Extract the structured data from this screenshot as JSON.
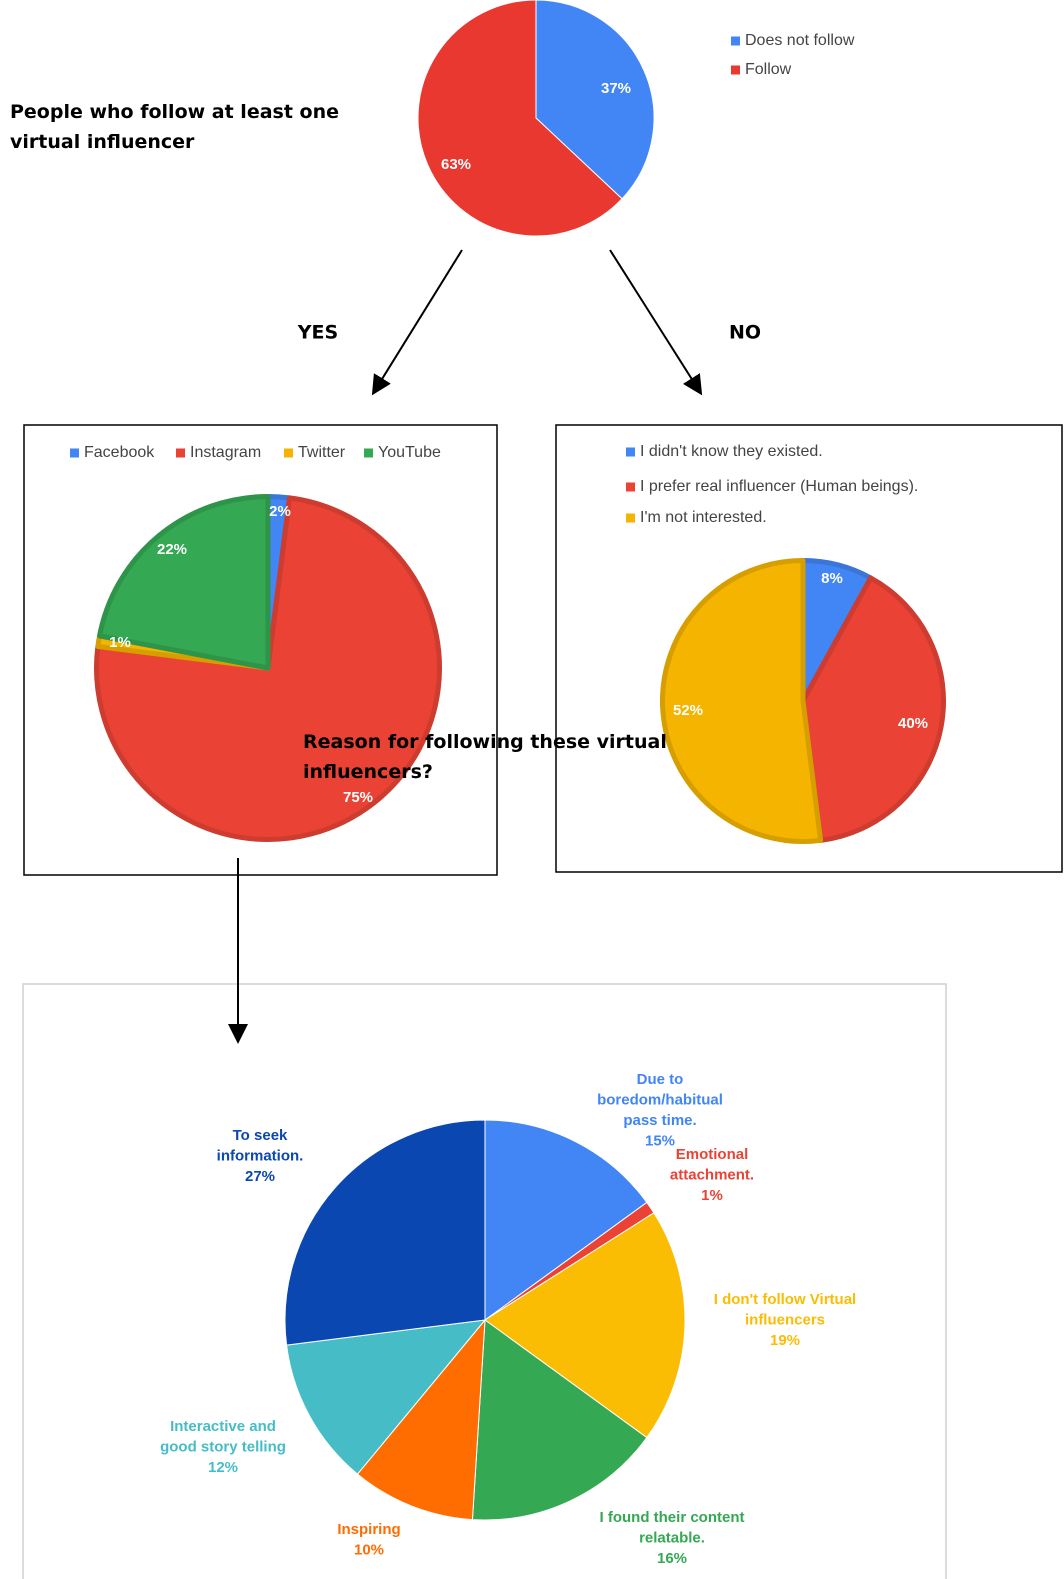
{
  "chart_data": [
    {
      "type": "pie",
      "title": "People who follow at least one virtual influencer",
      "categories": [
        "Does not follow",
        "Follow"
      ],
      "values": [
        37,
        63
      ],
      "value_labels": [
        "37%",
        "63%"
      ],
      "colors": [
        "#4285f4",
        "#e8382f"
      ],
      "legend": "right"
    },
    {
      "type": "pie",
      "annotation": "YES",
      "categories": [
        "Facebook",
        "Instagram",
        "Twitter",
        "YouTube"
      ],
      "values": [
        2,
        75,
        1,
        22
      ],
      "value_labels": [
        "2%",
        "75%",
        "1%",
        "22%"
      ],
      "colors": [
        "#4285f4",
        "#ea4335",
        "#f4b400",
        "#34a853"
      ],
      "legend": "top"
    },
    {
      "type": "pie",
      "annotation": "NO",
      "categories": [
        "I didn't know they existed.",
        "I prefer real influencer (Human beings).",
        "I'm not interested."
      ],
      "values": [
        8,
        40,
        52
      ],
      "value_labels": [
        "8%",
        "40%",
        "52%"
      ],
      "colors": [
        "#4285f4",
        "#ea4335",
        "#f4b400"
      ],
      "legend": "top"
    },
    {
      "type": "pie",
      "title": "Reason for following these virtual influencers?",
      "categories": [
        "Due to boredom/habitual pass time.",
        "Emotional attachment.",
        "I don't follow Virtual influencers",
        "I found their content relatable.",
        "Inspiring",
        "Interactive and good story telling",
        "To seek information."
      ],
      "values": [
        15,
        1,
        19,
        16,
        10,
        12,
        27
      ],
      "value_labels": [
        "15%",
        "1%",
        "19%",
        "16%",
        "10%",
        "12%",
        "27%"
      ],
      "colors": [
        "#4285f4",
        "#ea4335",
        "#fbbc04",
        "#34a853",
        "#ff6d01",
        "#46bdc6",
        "#0b47b0"
      ],
      "legend": "labels"
    }
  ]
}
